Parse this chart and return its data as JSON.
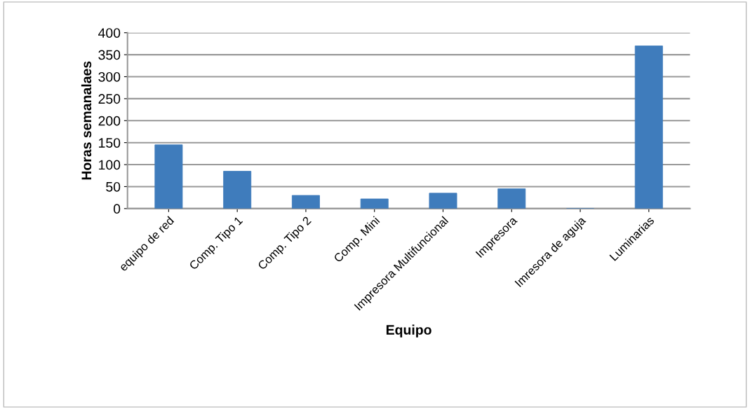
{
  "chart_data": {
    "type": "bar",
    "xlabel": "Equipo",
    "ylabel": "Horas semanalaes",
    "categories": [
      "equipo de red",
      "Comp. Tipo 1",
      "Comp. Tipo 2",
      "Comp. Mini",
      "Impresora Multifuncional",
      "Impresora",
      "Imresora de aguja",
      "Luminarias"
    ],
    "values": [
      145,
      85,
      30,
      22,
      35,
      45,
      0,
      370
    ],
    "color": "#3f7cbc",
    "ylim": [
      0,
      400
    ],
    "yticks": [
      0,
      50,
      100,
      150,
      200,
      250,
      300,
      350,
      400
    ],
    "grid": "y"
  }
}
